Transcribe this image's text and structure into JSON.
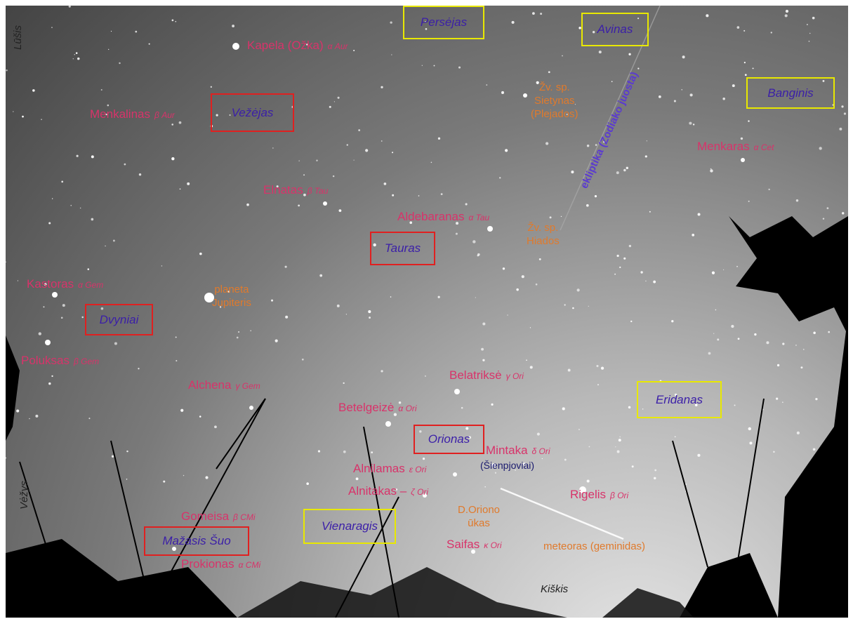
{
  "constellations": [
    "Persėjas",
    "Avinas",
    "Banginis",
    "Vežėjas",
    "Tauras",
    "Dvyniai",
    "Eridanas",
    "Orionas",
    "Vienaragis",
    "Mažasis Šuo"
  ],
  "stars": [
    {
      "name": "Kapela (Ožka)",
      "designation": "α Aur"
    },
    {
      "name": "Menkalinas",
      "designation": "β Aur"
    },
    {
      "name": "Elnatas",
      "designation": "β Tau"
    },
    {
      "name": "Aldebaranas",
      "designation": "α Tau"
    },
    {
      "name": "Kastoras",
      "designation": "α Gem"
    },
    {
      "name": "Poluksas",
      "designation": "β Gem"
    },
    {
      "name": "Alchena",
      "designation": "γ Gem"
    },
    {
      "name": "Belatriksė",
      "designation": "γ Ori"
    },
    {
      "name": "Betelgeizė",
      "designation": "α Ori"
    },
    {
      "name": "Mintaka",
      "designation": "δ Ori"
    },
    {
      "name": "Alnilamas",
      "designation": "ε Ori"
    },
    {
      "name": "Alnitakas –",
      "designation": "ζ Ori"
    },
    {
      "name": "Rigelis",
      "designation": "β Ori"
    },
    {
      "name": "Saifas",
      "designation": "κ Ori"
    },
    {
      "name": "Gomeisa",
      "designation": "β CMi"
    },
    {
      "name": "Prokionas",
      "designation": "α CMi"
    },
    {
      "name": "Menkaras",
      "designation": "α Cet"
    }
  ],
  "objects": [
    {
      "lines": [
        "Žv. sp.",
        "Sietynas",
        "(Plejados)"
      ]
    },
    {
      "lines": [
        "Žv. sp.",
        "Hiados"
      ]
    },
    {
      "lines": [
        "planeta",
        "Jupiteris"
      ]
    },
    {
      "lines": [
        "D.Oriono",
        "ūkas"
      ]
    },
    {
      "lines": [
        "meteoras (geminidas)"
      ]
    }
  ],
  "asterism": "(Šienpjoviai)",
  "ecliptic": "ekliptika (Zodiako juosta)",
  "edge_labels": [
    "Lūšis",
    "Vėžys",
    "Kiškis"
  ]
}
